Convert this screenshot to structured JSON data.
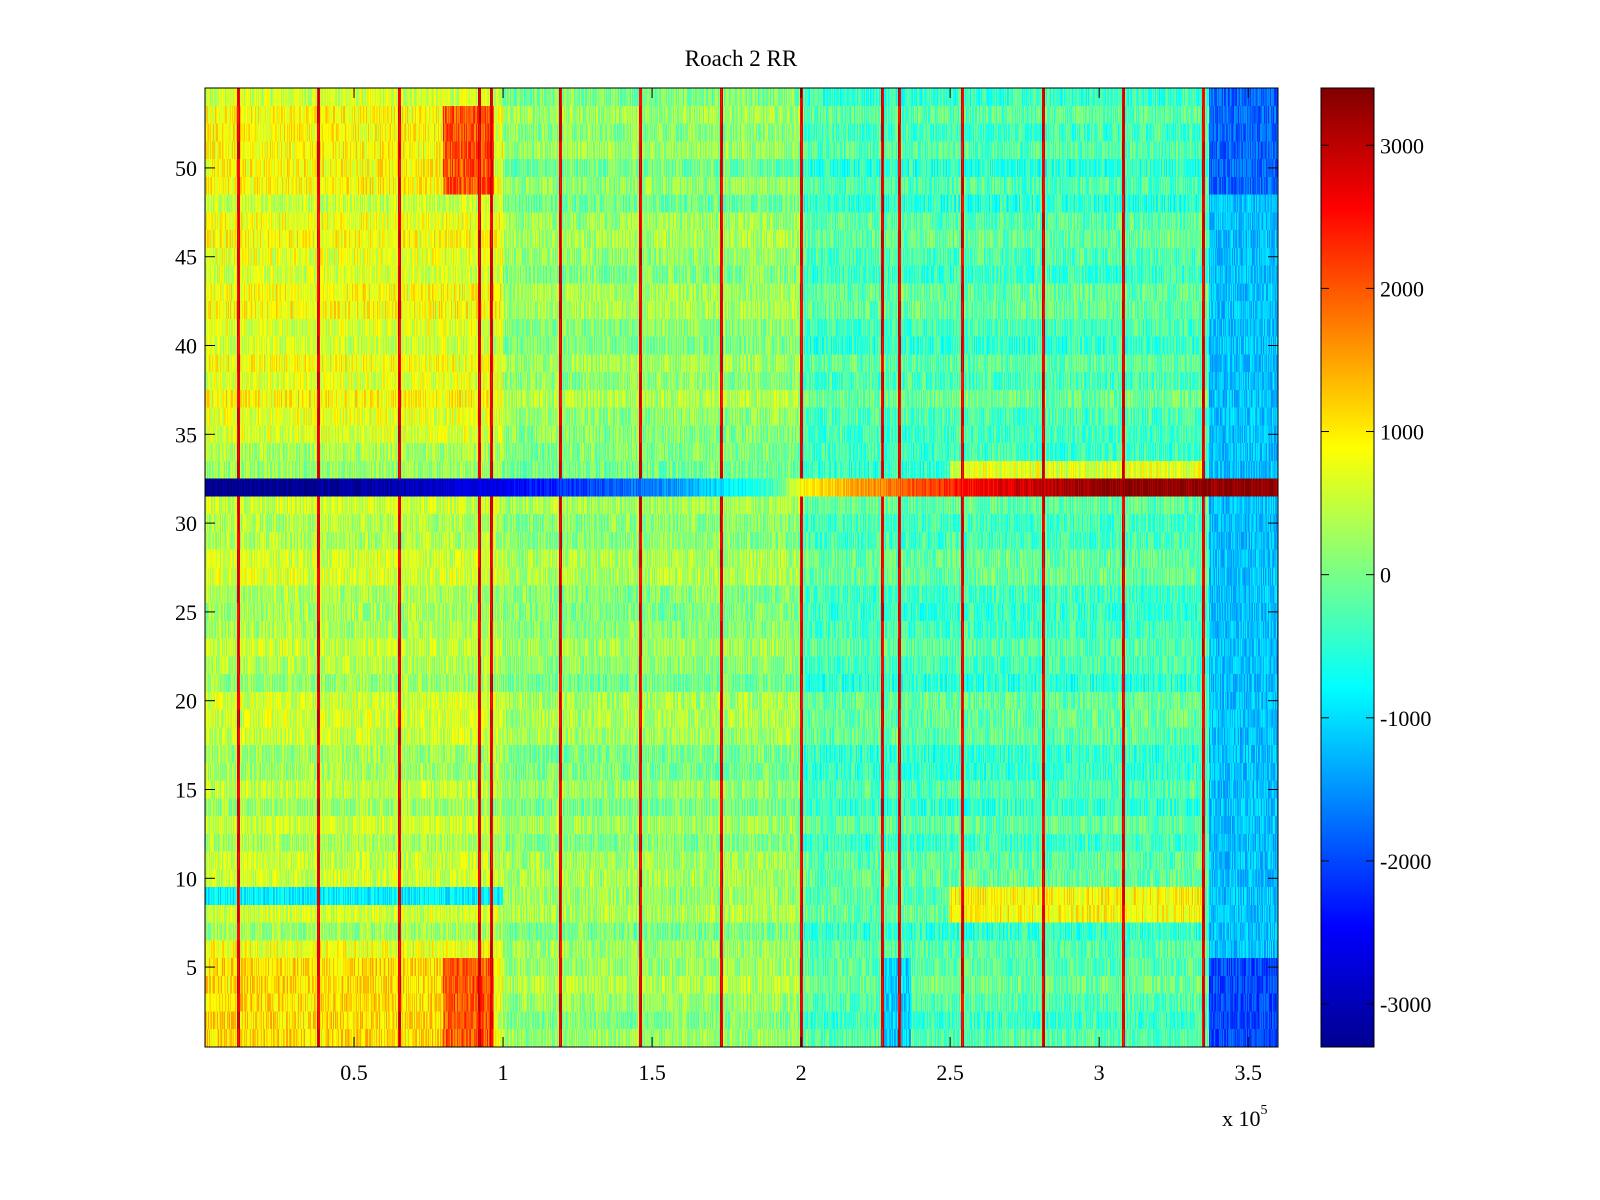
{
  "chart_data": {
    "type": "heatmap",
    "title": "Roach 2 RR",
    "xlabel": "",
    "ylabel": "",
    "colormap": "jet",
    "x_range": [
      0,
      360000
    ],
    "y_range": [
      0.5,
      54.5
    ],
    "x_ticks": [
      50000,
      100000,
      150000,
      200000,
      250000,
      300000,
      350000
    ],
    "x_tick_labels": [
      "0.5",
      "1",
      "1.5",
      "2",
      "2.5",
      "3",
      "3.5"
    ],
    "x_exponent_label": "x 10",
    "x_exponent": "5",
    "y_ticks": [
      5,
      10,
      15,
      20,
      25,
      30,
      35,
      40,
      45,
      50
    ],
    "y_tick_labels": [
      "5",
      "10",
      "15",
      "20",
      "25",
      "30",
      "35",
      "40",
      "45",
      "50"
    ],
    "colorbar": {
      "range": [
        -3300,
        3400
      ],
      "ticks": [
        -3000,
        -2000,
        -1000,
        0,
        1000,
        2000,
        3000
      ],
      "tick_labels": [
        "-3000",
        "-2000",
        "-1000",
        "0",
        "1000",
        "2000",
        "3000"
      ]
    },
    "rows": 54,
    "baseline_regions": [
      {
        "x_start": 0,
        "x_end": 100000,
        "upper_rows_value": 700,
        "lower_rows_value": 400
      },
      {
        "x_start": 100000,
        "x_end": 200000,
        "value": 150
      },
      {
        "x_start": 200000,
        "x_end": 360000,
        "value": -300
      }
    ],
    "hot_regions": [
      {
        "rows": [
          49,
          53
        ],
        "x_start": 80000,
        "x_end": 97000,
        "value": 2000
      },
      {
        "rows": [
          1,
          5
        ],
        "x_start": 80000,
        "x_end": 97000,
        "value": 2000
      },
      {
        "rows": [
          1,
          5
        ],
        "x_start": 0,
        "x_end": 80000,
        "value": 1100
      },
      {
        "rows": [
          49,
          53
        ],
        "x_start": 0,
        "x_end": 80000,
        "value": 900
      },
      {
        "rows": [
          8,
          9
        ],
        "x_start": 250000,
        "x_end": 335000,
        "value": 900
      },
      {
        "rows": [
          33,
          33
        ],
        "x_start": 250000,
        "x_end": 335000,
        "value": 700
      }
    ],
    "cold_regions": [
      {
        "rows": [
          1,
          5
        ],
        "x_start": 337000,
        "x_end": 360000,
        "value": -2000
      },
      {
        "rows": [
          49,
          54
        ],
        "x_start": 337000,
        "x_end": 360000,
        "value": -1800
      },
      {
        "rows": [
          6,
          48
        ],
        "x_start": 337000,
        "x_end": 360000,
        "value": -1200
      },
      {
        "rows": [
          1,
          5
        ],
        "x_start": 227000,
        "x_end": 237000,
        "value": -1100
      },
      {
        "rows": [
          9,
          9
        ],
        "x_start": 0,
        "x_end": 100000,
        "value": -900
      }
    ],
    "row_32_profile": {
      "row": 32,
      "x": [
        0,
        50000,
        100000,
        130000,
        160000,
        190000,
        200000,
        230000,
        260000,
        300000,
        360000
      ],
      "values": [
        -3200,
        -3100,
        -2600,
        -2000,
        -1400,
        -500,
        900,
        1800,
        2600,
        3300,
        3300
      ]
    },
    "vertical_spikes": {
      "x": [
        11000,
        38000,
        65000,
        92000,
        96000,
        119000,
        146000,
        173000,
        200000,
        227000,
        233000,
        254000,
        281000,
        308000,
        335000
      ],
      "value": 3000
    }
  }
}
